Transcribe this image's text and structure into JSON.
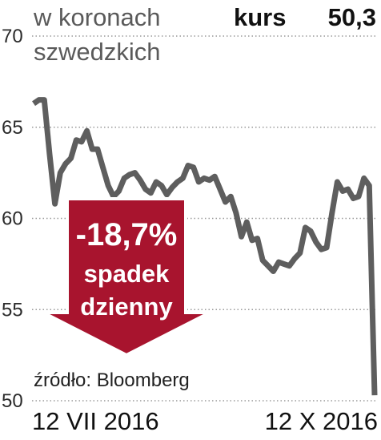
{
  "chart_data": {
    "type": "line",
    "title": "w koronach szwedzkich",
    "title_lines": [
      "w koronach",
      "szwedzkich"
    ],
    "kurs": {
      "label": "kurs",
      "value": "50,3"
    },
    "ylim": [
      50,
      70
    ],
    "yticks": [
      "70",
      "65",
      "60",
      "55",
      "50"
    ],
    "xticks": [
      "12 VII 2016",
      "12 X 2016"
    ],
    "grid": "horizontal, dotted",
    "source": "źródło: Bloomberg",
    "annotation": {
      "percent": "-18,7%",
      "line1": "spadek",
      "line2": "dzienny",
      "color": "#a8142e"
    },
    "line_color": "#5e5e5e",
    "series": [
      {
        "values": [
          66.3,
          66.5,
          66.5,
          63.5,
          60.8,
          62.5,
          63.0,
          63.3,
          64.3,
          64.2,
          64.8,
          63.8,
          63.8,
          62.8,
          61.8,
          61.2,
          61.5,
          62.2,
          62.4,
          62.5,
          62.1,
          61.6,
          61.4,
          62.0,
          61.8,
          61.3,
          61.7,
          62.0,
          62.2,
          62.9,
          62.8,
          62.0,
          62.2,
          62.1,
          62.3,
          61.6,
          60.9,
          61.2,
          60.3,
          59.0,
          59.8,
          58.8,
          58.9,
          57.7,
          57.4,
          57.1,
          57.6,
          57.5,
          57.4,
          57.8,
          58.1,
          59.5,
          59.3,
          58.7,
          58.3,
          58.4,
          60.3,
          62.0,
          61.5,
          61.6,
          61.1,
          61.2,
          62.2,
          61.8,
          50.3
        ]
      }
    ]
  }
}
